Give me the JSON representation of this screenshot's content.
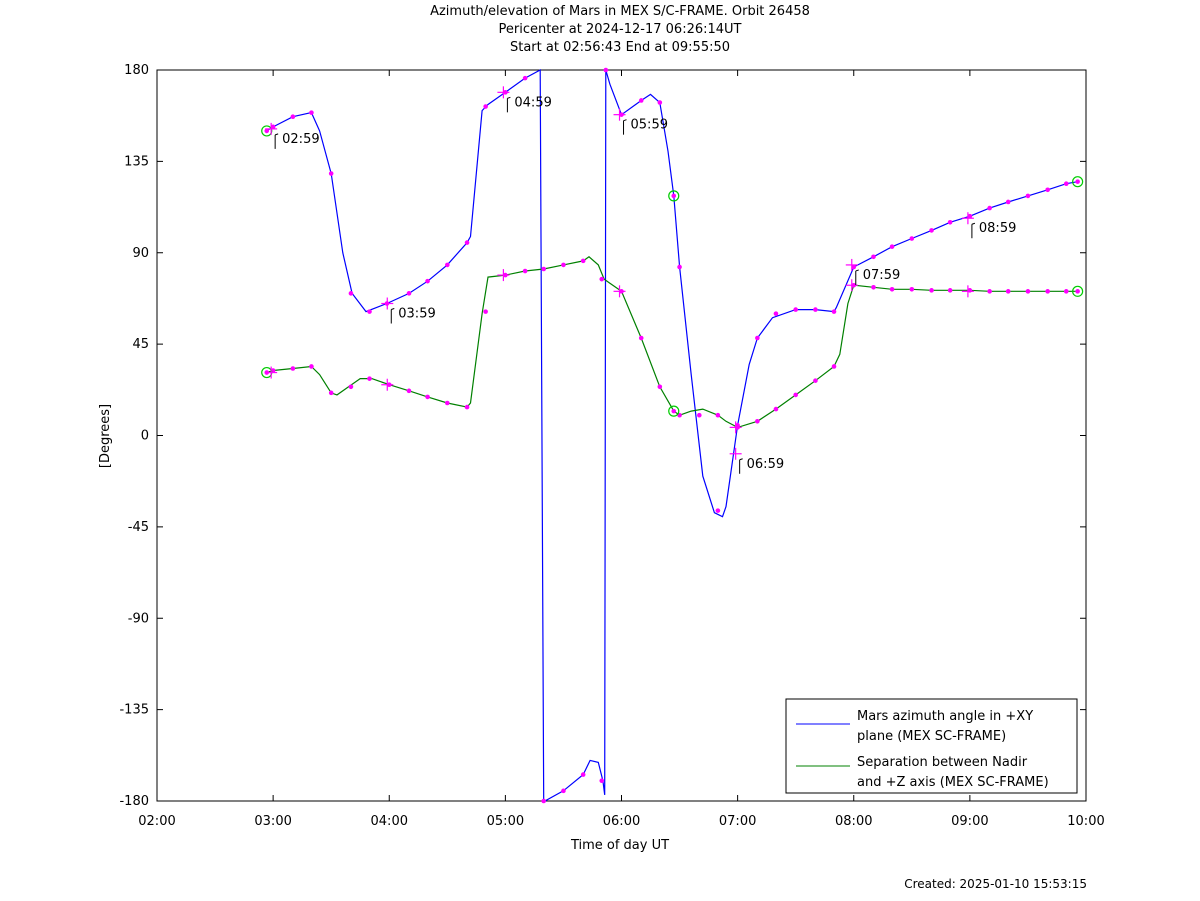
{
  "title_lines": [
    "Azimuth/elevation of Mars in MEX S/C-FRAME.  Orbit 26458",
    "Pericenter at 2024-12-17 06:26:14UT",
    "Start at 02:56:43 End at 09:55:50"
  ],
  "footer": "Created: 2025-01-10 15:53:15",
  "chart_data": {
    "type": "line",
    "title": "Azimuth/elevation of Mars in MEX S/C-FRAME.  Orbit 26458",
    "xlabel": "Time of day UT",
    "ylabel": "[Degrees]",
    "xlim": [
      2,
      10
    ],
    "ylim": [
      -180,
      180
    ],
    "xticks": [
      2,
      3,
      4,
      5,
      6,
      7,
      8,
      9,
      10
    ],
    "xtick_labels": [
      "02:00",
      "03:00",
      "04:00",
      "05:00",
      "06:00",
      "07:00",
      "08:00",
      "09:00",
      "10:00"
    ],
    "yticks": [
      180,
      135,
      90,
      45,
      0,
      -45,
      -90,
      -135,
      -180
    ],
    "ytick_labels": [
      "180",
      "135",
      "90",
      "45",
      "0",
      "-45",
      "-90",
      "-135",
      "-180"
    ],
    "grid": false,
    "legend_position": "bottom-right",
    "series": [
      {
        "name": "Mars azimuth angle in +XY plane (MEX SC-FRAME)",
        "legend_lines": [
          "Mars azimuth angle in +XY",
          "plane (MEX SC-FRAME)"
        ],
        "color": "#0000ff",
        "x": [
          2.945,
          3.0,
          3.17,
          3.33,
          3.4,
          3.5,
          3.6,
          3.68,
          3.8,
          3.98,
          4.17,
          4.33,
          4.5,
          4.67,
          4.7,
          4.8,
          4.85,
          5.0,
          5.17,
          5.3,
          5.33,
          5.34,
          5.5,
          5.67,
          5.73,
          5.8,
          5.84,
          5.855,
          5.865,
          5.9,
          6.0,
          6.17,
          6.25,
          6.33,
          6.4,
          6.45,
          6.5,
          6.6,
          6.7,
          6.8,
          6.87,
          6.9,
          7.0,
          7.1,
          7.17,
          7.3,
          7.5,
          7.67,
          7.83,
          7.85,
          8.0,
          8.17,
          8.33,
          8.5,
          8.67,
          8.83,
          9.0,
          9.17,
          9.33,
          9.5,
          9.67,
          9.83,
          9.928
        ],
        "y": [
          150,
          152,
          157,
          159,
          150,
          129,
          90,
          70,
          61,
          65,
          70,
          76,
          84,
          95,
          98,
          160,
          163,
          169,
          176,
          180,
          -180,
          -180,
          -175,
          -167,
          -160,
          -161,
          -170,
          -177,
          180,
          173,
          158,
          165,
          168,
          164,
          140,
          118,
          83,
          30,
          -20,
          -38,
          -40,
          -35,
          5,
          35,
          48,
          58,
          62,
          62,
          61,
          63,
          83,
          88,
          93,
          97,
          101,
          105,
          108,
          112,
          115,
          118,
          121,
          124,
          125
        ],
        "marker_x": [
          2.945,
          3.0,
          3.17,
          3.33,
          3.5,
          3.67,
          3.83,
          3.98,
          4.17,
          4.33,
          4.5,
          4.67,
          4.83,
          5.0,
          5.17,
          5.33,
          5.5,
          5.67,
          5.83,
          5.865,
          6.0,
          6.17,
          6.33,
          6.45,
          6.5,
          6.83,
          7.0,
          7.17,
          7.33,
          7.5,
          7.67,
          7.83,
          8.0,
          8.17,
          8.33,
          8.5,
          8.67,
          8.83,
          9.0,
          9.17,
          9.33,
          9.5,
          9.67,
          9.83,
          9.928
        ],
        "marker_y": [
          150,
          152,
          157,
          159,
          129,
          70,
          61,
          65,
          70,
          76,
          84,
          95,
          162,
          169,
          176,
          -180,
          -175,
          -167,
          -170,
          180,
          158,
          165,
          164,
          118,
          83,
          -37,
          5,
          48,
          60,
          62,
          62,
          61,
          83,
          88,
          93,
          97,
          101,
          105,
          108,
          112,
          115,
          118,
          121,
          124,
          125
        ]
      },
      {
        "name": "Separation between Nadir and +Z axis (MEX SC-FRAME)",
        "legend_lines": [
          "Separation between Nadir",
          "and +Z axis (MEX SC-FRAME)"
        ],
        "color": "#008000",
        "x": [
          2.945,
          3.0,
          3.17,
          3.33,
          3.4,
          3.5,
          3.55,
          3.65,
          3.75,
          3.85,
          4.0,
          4.17,
          4.33,
          4.5,
          4.67,
          4.7,
          4.8,
          4.85,
          5.0,
          5.17,
          5.33,
          5.5,
          5.67,
          5.72,
          5.8,
          5.85,
          5.9,
          6.0,
          6.17,
          6.33,
          6.45,
          6.5,
          6.6,
          6.7,
          6.83,
          6.9,
          7.0,
          7.17,
          7.33,
          7.5,
          7.67,
          7.83,
          7.88,
          7.95,
          8.0,
          8.17,
          8.33,
          8.5,
          8.67,
          8.83,
          9.0,
          9.17,
          9.33,
          9.5,
          9.67,
          9.83,
          9.928
        ],
        "y": [
          31,
          32,
          33,
          34,
          30,
          21,
          20,
          24,
          28,
          28,
          25,
          22,
          19,
          16,
          14,
          16,
          60,
          78,
          79,
          81,
          82,
          84,
          86,
          88,
          84,
          77,
          75,
          71,
          48,
          24,
          12,
          10,
          12,
          13,
          10,
          7,
          4,
          7,
          13,
          20,
          27,
          34,
          40,
          65,
          74,
          73,
          72,
          72,
          71.5,
          71.5,
          71.5,
          71,
          71,
          71,
          71,
          71,
          71
        ],
        "marker_x": [
          2.945,
          3.0,
          3.17,
          3.33,
          3.5,
          3.67,
          3.83,
          4.0,
          4.17,
          4.33,
          4.5,
          4.67,
          4.83,
          5.0,
          5.17,
          5.33,
          5.5,
          5.67,
          5.83,
          6.0,
          6.17,
          6.33,
          6.45,
          6.5,
          6.67,
          6.83,
          7.0,
          7.17,
          7.33,
          7.5,
          7.67,
          7.83,
          8.0,
          8.17,
          8.33,
          8.5,
          8.67,
          8.83,
          9.0,
          9.17,
          9.33,
          9.5,
          9.67,
          9.83,
          9.928
        ],
        "marker_y": [
          31,
          32,
          33,
          34,
          21,
          24,
          28,
          25,
          22,
          19,
          16,
          14,
          61,
          79,
          81,
          82,
          84,
          86,
          77,
          71,
          48,
          24,
          12,
          10,
          10,
          10,
          4,
          7,
          13,
          20,
          27,
          34,
          74,
          73,
          72,
          72,
          71.5,
          71.5,
          71.5,
          71,
          71,
          71,
          71,
          71,
          71
        ]
      }
    ],
    "hour_marks": [
      {
        "label": "02:59",
        "x": 2.983,
        "y": 151
      },
      {
        "label": "03:59",
        "x": 3.983,
        "y": 65
      },
      {
        "label": "04:59",
        "x": 4.983,
        "y": 169
      },
      {
        "label": "05:59",
        "x": 5.983,
        "y": 158
      },
      {
        "label": "06:59",
        "x": 6.983,
        "y": -9
      },
      {
        "label": "07:59",
        "x": 7.983,
        "y": 84
      },
      {
        "label": "08:59",
        "x": 8.983,
        "y": 107
      }
    ],
    "sep_hour_marks": [
      {
        "x": 2.983,
        "y": 31
      },
      {
        "x": 3.983,
        "y": 25
      },
      {
        "x": 4.983,
        "y": 79
      },
      {
        "x": 5.983,
        "y": 71
      },
      {
        "x": 6.983,
        "y": 4
      },
      {
        "x": 7.983,
        "y": 74
      },
      {
        "x": 8.983,
        "y": 71
      }
    ],
    "circle_marks": [
      {
        "x": 2.945,
        "y": 150
      },
      {
        "x": 2.945,
        "y": 31
      },
      {
        "x": 9.928,
        "y": 125
      },
      {
        "x": 9.928,
        "y": 71
      },
      {
        "x": 6.45,
        "y": 118
      },
      {
        "x": 6.45,
        "y": 12
      }
    ]
  }
}
